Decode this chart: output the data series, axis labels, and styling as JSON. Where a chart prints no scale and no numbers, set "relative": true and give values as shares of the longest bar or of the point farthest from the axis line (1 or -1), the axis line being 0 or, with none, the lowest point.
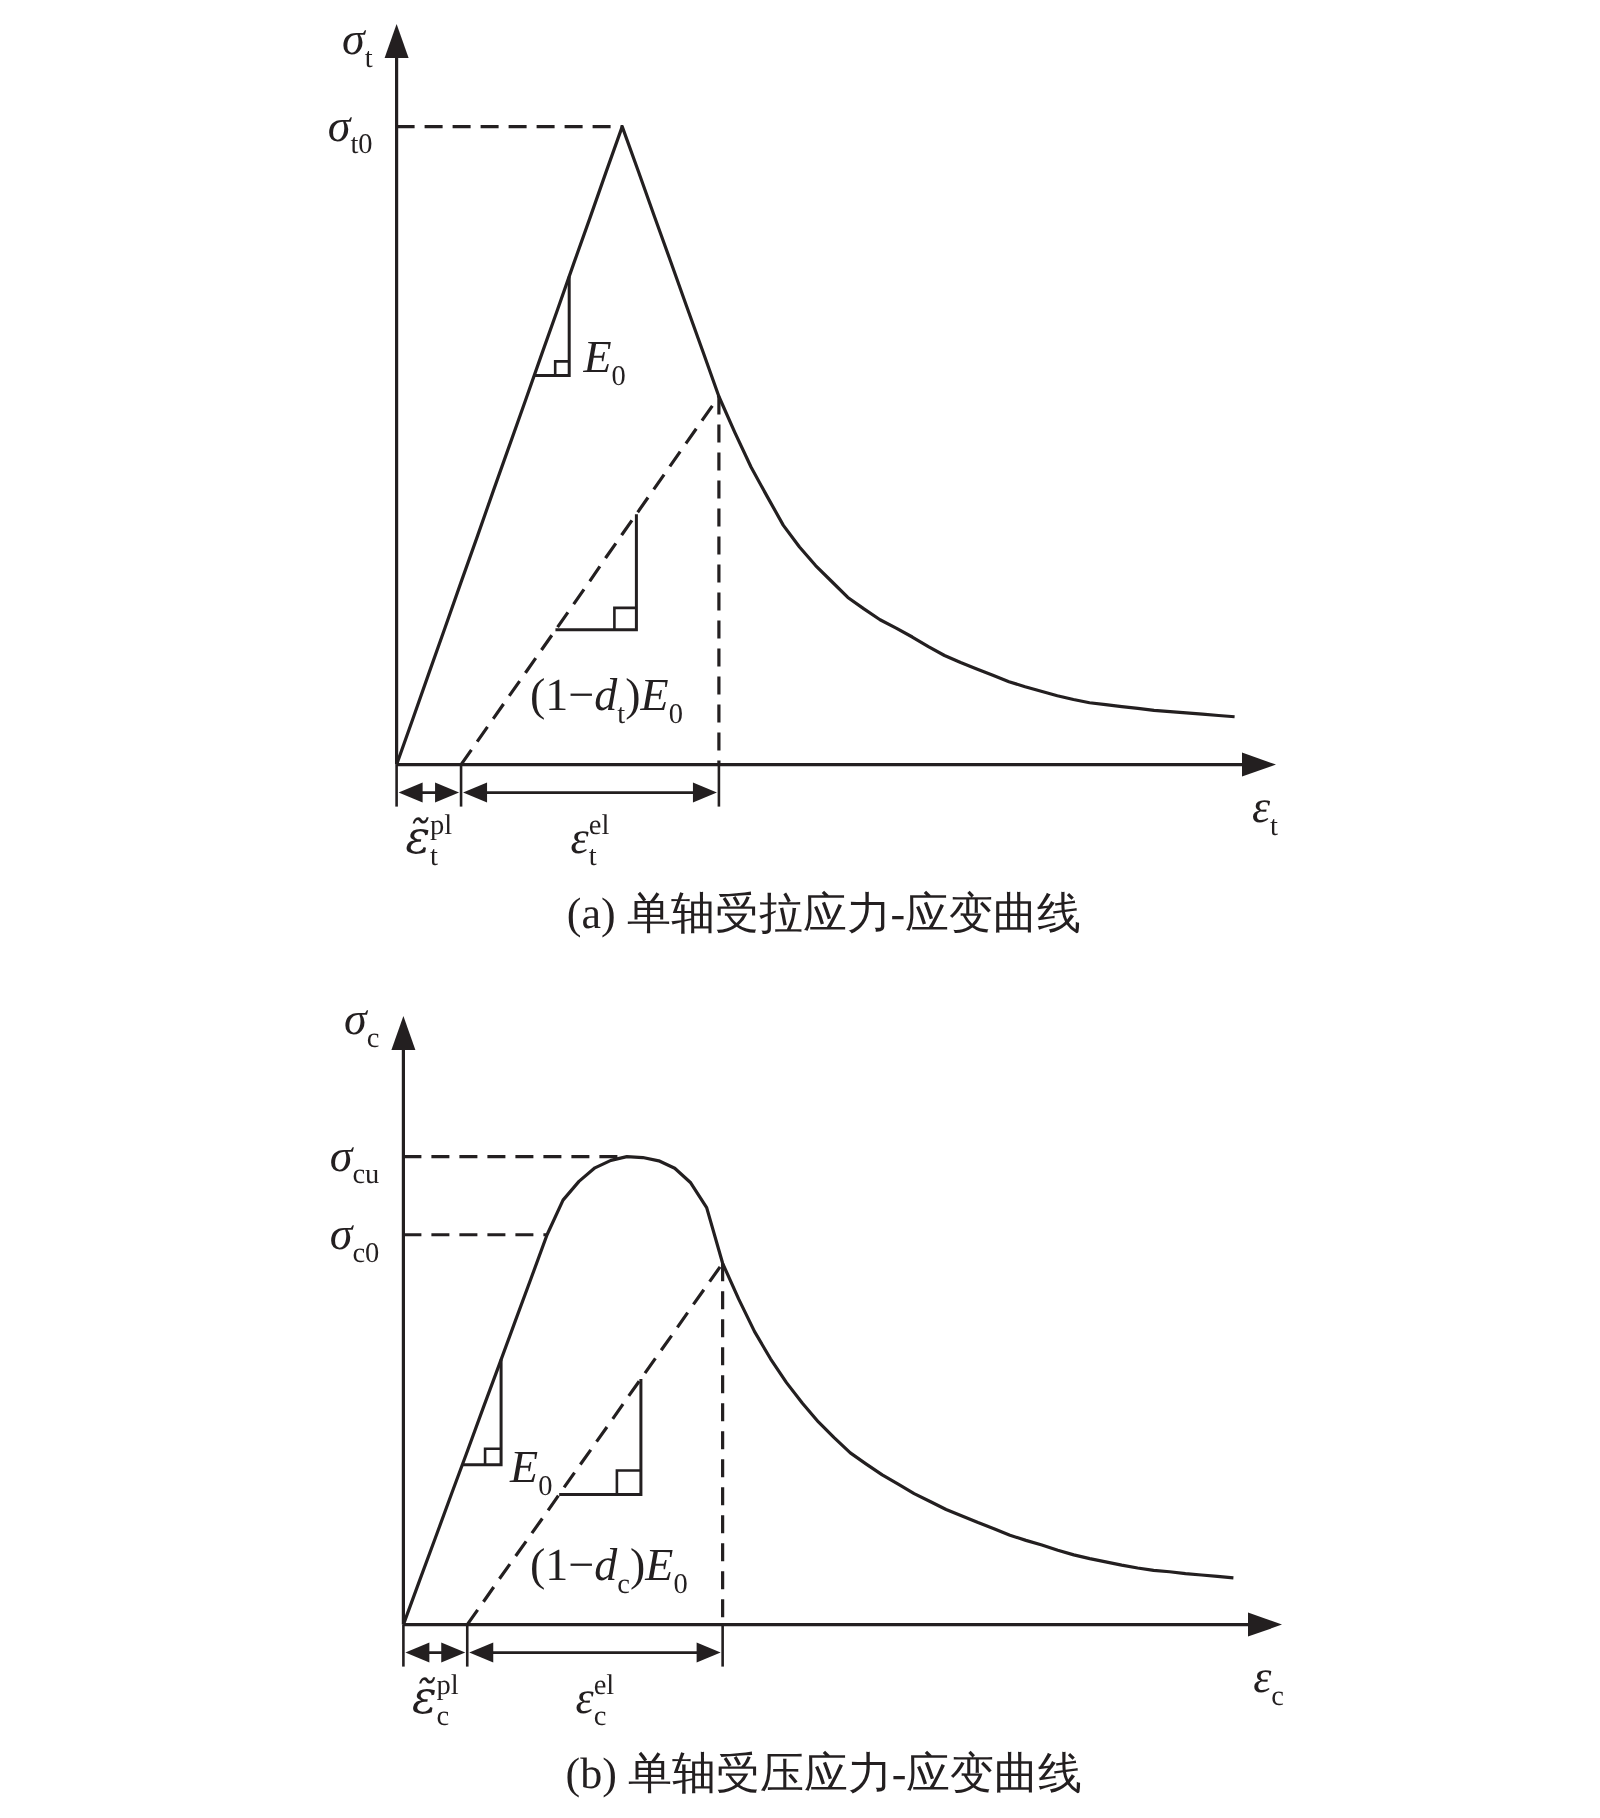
{
  "chart_data": [
    {
      "type": "line",
      "title": "(a) 单轴受拉应力-应变曲线",
      "xlabel": "ε$_{t}$",
      "ylabel": "σ$_{t}$",
      "relative": true,
      "categories": [
        null,
        null,
        null,
        null,
        null,
        null,
        null,
        null,
        null,
        null,
        null,
        null,
        null,
        null,
        null,
        null,
        null,
        null,
        null,
        null,
        null,
        null,
        null,
        null,
        null,
        null,
        null,
        null,
        null,
        null,
        null,
        null,
        null,
        null,
        null,
        null,
        null,
        null,
        null,
        null,
        null,
        null,
        null,
        null,
        null,
        null,
        null,
        null,
        null,
        null,
        null,
        null,
        null
      ],
      "series": [
        {
          "color": "#231f20",
          "line_style": "solid",
          "values": [
            0,
            0.071,
            0.143,
            0.214,
            0.286,
            0.357,
            0.429,
            0.5,
            0.571,
            0.643,
            0.714,
            0.786,
            0.857,
            0.929,
            1,
            0.93,
            0.859,
            0.789,
            0.718,
            0.648,
            0.577,
            0.52,
            0.466,
            0.42,
            0.375,
            0.341,
            0.312,
            0.287,
            0.262,
            0.244,
            0.227,
            0.214,
            0.2,
            0.185,
            0.171,
            0.16,
            0.15,
            0.14,
            0.13,
            0.122,
            0.115,
            0.108,
            0.102,
            0.097,
            0.094,
            0.091,
            0.088,
            0.085,
            0.083,
            0.081,
            0.079,
            0.077,
            0.075
          ]
        },
        {
          "color": "#231f20",
          "line_style": "dashed",
          "values": [
            null,
            null,
            null,
            null,
            0,
            0.036,
            0.072,
            0.108,
            0.144,
            0.18,
            0.216,
            0.252,
            0.288,
            0.325,
            0.361,
            0.397,
            0.433,
            0.469,
            0.505,
            0.541,
            0.577,
            null,
            null,
            null,
            null,
            null,
            null,
            null,
            null,
            null,
            null,
            null,
            null,
            null,
            null,
            null,
            null,
            null,
            null,
            null,
            null,
            null,
            null,
            null,
            null,
            null,
            null,
            null,
            null,
            null,
            null,
            null,
            null
          ]
        },
        {
          "color": "#231f20",
          "line_style": "dashed",
          "values": [
            1,
            1,
            1,
            1,
            1,
            1,
            1,
            1,
            1,
            1,
            1,
            1,
            1,
            1,
            1,
            null,
            null,
            null,
            null,
            null,
            null,
            null,
            null,
            null,
            null,
            null,
            null,
            null,
            null,
            null,
            null,
            null,
            null,
            null,
            null,
            null,
            null,
            null,
            null,
            null,
            null,
            null,
            null,
            null,
            null,
            null,
            null,
            null,
            null,
            null,
            null,
            null,
            null
          ]
        }
      ],
      "annotations": [
        "σ$_{t0}$",
        "E$_{0}$",
        "(1−d$_{t}$)E$_{0}$",
        "ε̃$_{t}$$^{pl}$",
        "ε$_{t}$$^{el}$"
      ]
    },
    {
      "type": "line",
      "title": "(b) 单轴受压应力-应变曲线",
      "xlabel": "ε$_{c}$",
      "ylabel": "σ$_{c}$",
      "relative": true,
      "categories": [
        null,
        null,
        null,
        null,
        null,
        null,
        null,
        null,
        null,
        null,
        null,
        null,
        null,
        null,
        null,
        null,
        null,
        null,
        null,
        null,
        null,
        null,
        null,
        null,
        null,
        null,
        null,
        null,
        null,
        null,
        null,
        null,
        null,
        null,
        null,
        null,
        null,
        null,
        null,
        null,
        null,
        null,
        null,
        null,
        null,
        null,
        null,
        null,
        null,
        null,
        null,
        null,
        null
      ],
      "series": [
        {
          "color": "#231f20",
          "line_style": "solid",
          "values": [
            0,
            0.093,
            0.185,
            0.278,
            0.37,
            0.463,
            0.555,
            0.648,
            0.74,
            0.833,
            0.907,
            0.947,
            0.976,
            0.992,
            1,
            0.998,
            0.991,
            0.975,
            0.944,
            0.891,
            0.772,
            0.696,
            0.626,
            0.568,
            0.517,
            0.473,
            0.433,
            0.399,
            0.367,
            0.343,
            0.32,
            0.3,
            0.28,
            0.263,
            0.246,
            0.232,
            0.218,
            0.205,
            0.191,
            0.18,
            0.17,
            0.159,
            0.149,
            0.141,
            0.134,
            0.127,
            0.121,
            0.116,
            0.113,
            0.109,
            0.106,
            0.103,
            0.1
          ]
        },
        {
          "color": "#231f20",
          "line_style": "dashed",
          "values": [
            null,
            null,
            null,
            null,
            0,
            0.048,
            0.097,
            0.145,
            0.193,
            0.241,
            0.29,
            0.338,
            0.386,
            0.434,
            0.483,
            0.531,
            0.579,
            0.627,
            0.676,
            0.724,
            0.772,
            null,
            null,
            null,
            null,
            null,
            null,
            null,
            null,
            null,
            null,
            null,
            null,
            null,
            null,
            null,
            null,
            null,
            null,
            null,
            null,
            null,
            null,
            null,
            null,
            null,
            null,
            null,
            null,
            null,
            null,
            null,
            null
          ]
        },
        {
          "color": "#231f20",
          "line_style": "dashed",
          "values": [
            1,
            1,
            1,
            1,
            1,
            1,
            1,
            1,
            1,
            1,
            1,
            1,
            1,
            1,
            1,
            null,
            null,
            null,
            null,
            null,
            null,
            null,
            null,
            null,
            null,
            null,
            null,
            null,
            null,
            null,
            null,
            null,
            null,
            null,
            null,
            null,
            null,
            null,
            null,
            null,
            null,
            null,
            null,
            null,
            null,
            null,
            null,
            null,
            null,
            null,
            null,
            null,
            null
          ]
        },
        {
          "color": "#231f20",
          "line_style": "dashed",
          "values": [
            0.833,
            0.833,
            0.833,
            0.833,
            0.833,
            0.833,
            0.833,
            0.833,
            0.833,
            0.833,
            null,
            null,
            null,
            null,
            null,
            null,
            null,
            null,
            null,
            null,
            null,
            null,
            null,
            null,
            null,
            null,
            null,
            null,
            null,
            null,
            null,
            null,
            null,
            null,
            null,
            null,
            null,
            null,
            null,
            null,
            null,
            null,
            null,
            null,
            null,
            null,
            null,
            null,
            null,
            null,
            null,
            null,
            null
          ]
        }
      ],
      "annotations": [
        "σ$_{cu}$",
        "σ$_{c0}$",
        "E$_{0}$",
        "(1−d$_{c}$)E$_{0}$",
        "ε̃$_{c}$$^{pl}$",
        "ε$_{c}$$^{el}$"
      ]
    }
  ]
}
